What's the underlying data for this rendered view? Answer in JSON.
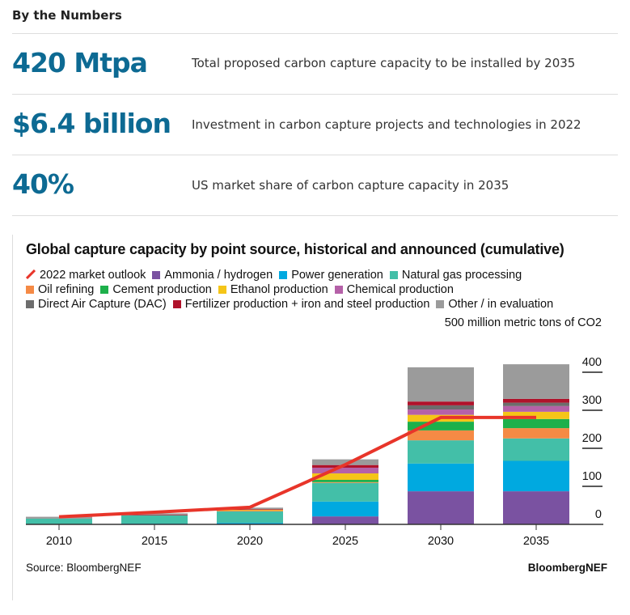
{
  "header": {
    "title": "By the Numbers"
  },
  "stats": [
    {
      "value": "420 Mtpa",
      "label": "Total proposed carbon capture capacity to be installed by 2035"
    },
    {
      "value": "$6.4 billion",
      "label": "Investment in carbon capture projects and technologies in 2022"
    },
    {
      "value": "40%",
      "label": "US market share of carbon capture capacity in 2035"
    }
  ],
  "source": "Source: BloombergNEF",
  "brand": "BloombergNEF",
  "chart_data": {
    "type": "bar",
    "stacked": true,
    "title": "Global capture capacity by point source, historical and announced (cumulative)",
    "ylabel": "500 million metric tons of CO2",
    "ylim": [
      0,
      500
    ],
    "yticks": [
      0,
      100,
      200,
      300,
      400
    ],
    "categories": [
      "2010",
      "2015",
      "2020",
      "2025",
      "2030",
      "2035"
    ],
    "legend_position": "top",
    "grid": false,
    "line": {
      "name": "2022 market outlook",
      "color": "#e8352a",
      "values": [
        20,
        32,
        45,
        157,
        281,
        281
      ]
    },
    "series": [
      {
        "name": "Ammonia / hydrogen",
        "color": "#7a52a1",
        "values": [
          0,
          0,
          0,
          21,
          87,
          87
        ]
      },
      {
        "name": "Power generation",
        "color": "#00a9e0",
        "values": [
          0,
          2,
          4,
          39,
          73,
          80
        ]
      },
      {
        "name": "Natural gas processing",
        "color": "#43bfa8",
        "values": [
          15,
          22,
          30,
          49,
          61,
          59
        ]
      },
      {
        "name": "Oil refining",
        "color": "#f58a45",
        "values": [
          0,
          0,
          2,
          2,
          26,
          27
        ]
      },
      {
        "name": "Cement production",
        "color": "#1db04b",
        "values": [
          0,
          0,
          0,
          6,
          23,
          24
        ]
      },
      {
        "name": "Ethanol production",
        "color": "#f5c518",
        "values": [
          0,
          0,
          2,
          17,
          18,
          19
        ]
      },
      {
        "name": "Chemical production",
        "color": "#b561a8",
        "values": [
          0,
          0,
          0,
          15,
          14,
          15
        ]
      },
      {
        "name": "Direct Air Capture (DAC)",
        "color": "#6d6d6d",
        "values": [
          0,
          0,
          0,
          0,
          11,
          9
        ]
      },
      {
        "name": "Fertilizer production + iron and steel production",
        "color": "#b0122b",
        "values": [
          0,
          2,
          2,
          7,
          10,
          10
        ]
      },
      {
        "name": "Other / in evaluation",
        "color": "#9b9b9b",
        "values": [
          5,
          3,
          4,
          15,
          90,
          91
        ]
      }
    ]
  }
}
